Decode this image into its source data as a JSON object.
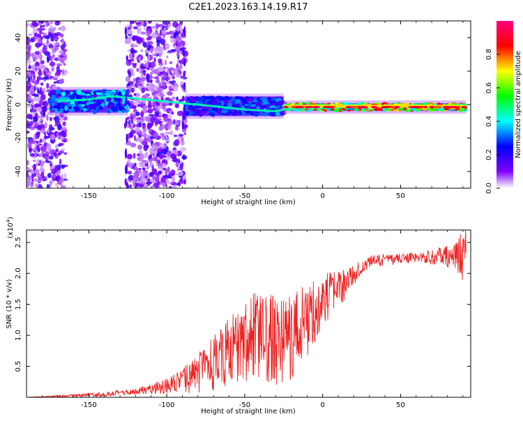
{
  "figure_title": "C2E1.2023.163.14.19.R17",
  "chart_data": [
    {
      "type": "heatmap",
      "xlabel": "Height of straight line (km)",
      "ylabel": "Frequency (Hz)",
      "xlim": [
        -190,
        95
      ],
      "ylim": [
        -50,
        50
      ],
      "x_ticks": [
        -150,
        -100,
        -50,
        0,
        50
      ],
      "x_tick_labels": [
        "-150",
        "-100",
        "-50",
        "0",
        "50"
      ],
      "y_ticks": [
        -40,
        -20,
        0,
        20,
        40
      ],
      "y_tick_labels": [
        "-40",
        "-20",
        "0",
        "20",
        "40"
      ],
      "grid": false,
      "colorbar": {
        "label": "Normalized spectral amplitude",
        "range": [
          0,
          1
        ],
        "ticks": [
          0.0,
          0.2,
          0.4,
          0.6,
          0.8
        ],
        "tick_labels": [
          "0.0",
          "0.2",
          "0.4",
          "0.6",
          "0.8"
        ],
        "colors": [
          "#ffffff",
          "#8000ff",
          "#0000ff",
          "#00ffff",
          "#00ff00",
          "#ffff00",
          "#ff0000",
          "#ff0080"
        ]
      },
      "regions": [
        {
          "x": [
            -190,
            -165
          ],
          "y": [
            -50,
            50
          ],
          "level": 0.2,
          "kind": "scattered"
        },
        {
          "x": [
            -175,
            -125
          ],
          "y": [
            -4,
            8
          ],
          "level": 0.35,
          "kind": "band"
        },
        {
          "x": [
            -125,
            -88
          ],
          "y": [
            -50,
            50
          ],
          "level": 0.2,
          "kind": "scattered"
        },
        {
          "x": [
            -88,
            -25
          ],
          "y": [
            -6,
            4
          ],
          "level": 0.3,
          "kind": "band"
        },
        {
          "x": [
            -25,
            92
          ],
          "y": [
            -3,
            0
          ],
          "level": 0.75,
          "kind": "band"
        }
      ],
      "ridge": [
        {
          "x": -170,
          "y": 2
        },
        {
          "x": -150,
          "y": 3
        },
        {
          "x": -135,
          "y": 5
        },
        {
          "x": -125,
          "y": 1
        },
        {
          "x": -88,
          "y": 2
        },
        {
          "x": -70,
          "y": -1
        },
        {
          "x": -50,
          "y": -3
        },
        {
          "x": -30,
          "y": -4
        },
        {
          "x": -20,
          "y": -2
        },
        {
          "x": 0,
          "y": -2
        },
        {
          "x": 30,
          "y": -1
        },
        {
          "x": 60,
          "y": -1
        },
        {
          "x": 92,
          "y": -1
        }
      ]
    },
    {
      "type": "line",
      "xlabel": "Height of straight line (km)",
      "ylabel": "SNR (10 * v/v)",
      "scale_label": "(x10",
      "scale_exponent": "4",
      "scale_close": ")",
      "xlim": [
        -190,
        95
      ],
      "ylim": [
        0,
        2.7
      ],
      "x_ticks": [
        -150,
        -100,
        -50,
        0,
        50
      ],
      "x_tick_labels": [
        "-150",
        "-100",
        "-50",
        "0",
        "50"
      ],
      "y_ticks": [
        0.5,
        1.0,
        1.5,
        2.0,
        2.5
      ],
      "y_tick_labels": [
        "0.5",
        "1.0",
        "1.5",
        "2.0",
        "2.5"
      ],
      "grid": false,
      "color": "#ee2222",
      "envelope": [
        {
          "x": -190,
          "y": 0.0
        },
        {
          "x": -140,
          "y": 0.05
        },
        {
          "x": -120,
          "y": 0.1
        },
        {
          "x": -100,
          "y": 0.2
        },
        {
          "x": -90,
          "y": 0.28
        },
        {
          "x": -75,
          "y": 0.5
        },
        {
          "x": -60,
          "y": 0.8
        },
        {
          "x": -45,
          "y": 1.05
        },
        {
          "x": -30,
          "y": 1.0
        },
        {
          "x": -20,
          "y": 1.05
        },
        {
          "x": -10,
          "y": 1.3
        },
        {
          "x": 0,
          "y": 1.6
        },
        {
          "x": 10,
          "y": 1.75
        },
        {
          "x": 20,
          "y": 2.0
        },
        {
          "x": 30,
          "y": 2.2
        },
        {
          "x": 50,
          "y": 2.25
        },
        {
          "x": 70,
          "y": 2.28
        },
        {
          "x": 92,
          "y": 2.3
        }
      ],
      "noise_amplitude": [
        {
          "x": -190,
          "a": 0.0
        },
        {
          "x": -120,
          "a": 0.05
        },
        {
          "x": -95,
          "a": 0.15
        },
        {
          "x": -70,
          "a": 0.45
        },
        {
          "x": -45,
          "a": 0.7
        },
        {
          "x": -20,
          "a": 0.75
        },
        {
          "x": 0,
          "a": 0.45
        },
        {
          "x": 15,
          "a": 0.25
        },
        {
          "x": 25,
          "a": 0.1
        },
        {
          "x": 60,
          "a": 0.08
        },
        {
          "x": 85,
          "a": 0.2
        },
        {
          "x": 92,
          "a": 0.6
        }
      ]
    }
  ]
}
